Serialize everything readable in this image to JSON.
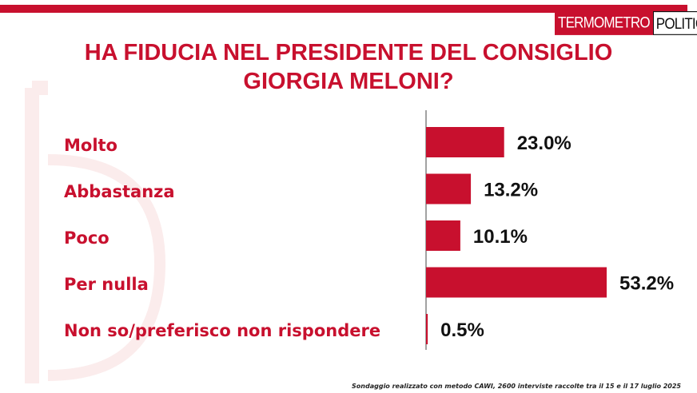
{
  "brand": {
    "logo_left": "TERMOMETRO",
    "logo_right": "POLITICO"
  },
  "colors": {
    "accent": "#c8102e",
    "text_dark": "#111111"
  },
  "chart_data": {
    "type": "bar",
    "orientation": "horizontal",
    "title": "HA FIDUCIA NEL PRESIDENTE DEL CONSIGLIO GIORGIA MELONI?",
    "title_lines": [
      "HA FIDUCIA NEL PRESIDENTE DEL CONSIGLIO",
      "GIORGIA MELONI?"
    ],
    "categories": [
      "Molto",
      "Abbastanza",
      "Poco",
      "Per nulla",
      "Non so/preferisco non rispondere"
    ],
    "values": [
      23.0,
      13.2,
      10.1,
      53.2,
      0.5
    ],
    "value_labels": [
      "23.0%",
      "13.2%",
      "10.1%",
      "53.2%",
      "0.5%"
    ],
    "unit": "%",
    "xlim": [
      0,
      53.2
    ],
    "grid": false,
    "legend": "none"
  },
  "footnote": "Sondaggio realizzato con metodo CAWI, 2600 interviste raccolte tra il 15 e il 17 luglio 2025"
}
